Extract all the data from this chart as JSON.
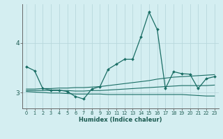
{
  "xlabel": "Humidex (Indice chaleur)",
  "background_color": "#d4eef1",
  "grid_color": "#b8d8dc",
  "line_color": "#1a6e65",
  "xlim": [
    -0.5,
    23.5
  ],
  "ylim": [
    2.68,
    4.78
  ],
  "xticks": [
    0,
    1,
    2,
    3,
    4,
    5,
    6,
    7,
    8,
    9,
    10,
    11,
    12,
    13,
    14,
    15,
    16,
    17,
    18,
    19,
    20,
    21,
    22,
    23
  ],
  "yticks": [
    3,
    4
  ],
  "main_x": [
    0,
    1,
    2,
    3,
    4,
    5,
    6,
    7,
    8,
    9,
    10,
    11,
    12,
    13,
    14,
    15,
    16,
    17,
    18,
    19,
    20,
    21,
    22,
    23
  ],
  "main_y": [
    3.52,
    3.44,
    3.08,
    3.05,
    3.05,
    3.02,
    2.92,
    2.87,
    3.07,
    3.12,
    3.47,
    3.57,
    3.67,
    3.67,
    4.12,
    4.62,
    4.27,
    3.08,
    3.42,
    3.38,
    3.37,
    3.08,
    3.28,
    3.32
  ],
  "upper_x": [
    0,
    1,
    2,
    3,
    4,
    5,
    6,
    7,
    8,
    9,
    10,
    11,
    12,
    13,
    14,
    15,
    16,
    17,
    18,
    19,
    20,
    21,
    22,
    23
  ],
  "upper_y": [
    3.07,
    3.07,
    3.08,
    3.08,
    3.09,
    3.09,
    3.1,
    3.1,
    3.11,
    3.12,
    3.14,
    3.16,
    3.18,
    3.2,
    3.22,
    3.24,
    3.27,
    3.29,
    3.31,
    3.32,
    3.33,
    3.34,
    3.35,
    3.36
  ],
  "lower_x": [
    0,
    1,
    2,
    3,
    4,
    5,
    6,
    7,
    8,
    9,
    10,
    11,
    12,
    13,
    14,
    15,
    16,
    17,
    18,
    19,
    20,
    21,
    22,
    23
  ],
  "lower_y": [
    3.02,
    3.01,
    3.0,
    2.99,
    2.99,
    2.98,
    2.97,
    2.97,
    2.97,
    2.97,
    2.96,
    2.96,
    2.96,
    2.96,
    2.96,
    2.96,
    2.96,
    2.96,
    2.96,
    2.96,
    2.95,
    2.94,
    2.93,
    2.93
  ],
  "mid_x": [
    0,
    1,
    2,
    3,
    4,
    5,
    6,
    7,
    8,
    9,
    10,
    11,
    12,
    13,
    14,
    15,
    16,
    17,
    18,
    19,
    20,
    21,
    22,
    23
  ],
  "mid_y": [
    3.04,
    3.04,
    3.04,
    3.04,
    3.04,
    3.04,
    3.03,
    3.03,
    3.04,
    3.04,
    3.05,
    3.06,
    3.07,
    3.08,
    3.09,
    3.1,
    3.11,
    3.12,
    3.13,
    3.14,
    3.14,
    3.14,
    3.14,
    3.15
  ]
}
